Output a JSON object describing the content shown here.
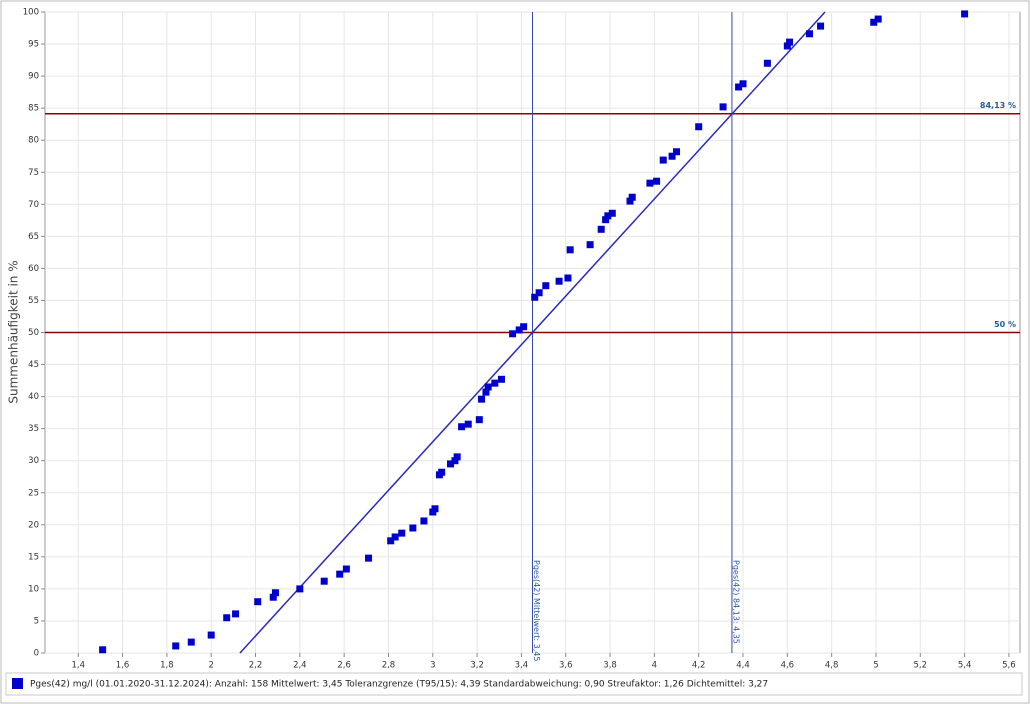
{
  "chart_data": {
    "type": "scatter",
    "y_label": "Summenhäufigkeit in %",
    "xlim": [
      1.25,
      5.65
    ],
    "ylim": [
      0,
      100
    ],
    "xticks": [
      {
        "value": 1.4,
        "label": "1,4"
      },
      {
        "value": 1.6,
        "label": "1,6"
      },
      {
        "value": 1.8,
        "label": "1,8"
      },
      2,
      {
        "value": 2.2,
        "label": "2,2"
      },
      {
        "value": 2.4,
        "label": "2,4"
      },
      {
        "value": 2.6,
        "label": "2,6"
      },
      {
        "value": 2.8,
        "label": "2,8"
      },
      3,
      {
        "value": 3.2,
        "label": "3,2"
      },
      {
        "value": 3.4,
        "label": "3,4"
      },
      {
        "value": 3.6,
        "label": "3,6"
      },
      {
        "value": 3.8,
        "label": "3,8"
      },
      4,
      {
        "value": 4.2,
        "label": "4,2"
      },
      {
        "value": 4.4,
        "label": "4,4"
      },
      {
        "value": 4.6,
        "label": "4,6"
      },
      {
        "value": 4.8,
        "label": "4,8"
      },
      5,
      {
        "value": 5.2,
        "label": "5,2"
      },
      {
        "value": 5.4,
        "label": "5,4"
      },
      {
        "value": 5.6,
        "label": "5,6"
      }
    ],
    "yticks": [
      0,
      5,
      10,
      15,
      20,
      25,
      30,
      35,
      40,
      45,
      50,
      55,
      60,
      65,
      70,
      75,
      80,
      85,
      90,
      95,
      100
    ],
    "grid": true,
    "series": [
      {
        "name": "Pges(42) mg/l (01.01.2020-31.12.2024): Anzahl: 158 Mittelwert: 3,45 Toleranzgrenze (T95/15): 4,39 Standardabweichung: 0,90 Streufaktor: 1,26 Dichtemittel: 3,27",
        "color": "#0000cc",
        "x": [
          1.51,
          1.84,
          1.91,
          2.0,
          2.07,
          2.11,
          2.21,
          2.28,
          2.29,
          2.4,
          2.51,
          2.58,
          2.61,
          2.71,
          2.81,
          2.83,
          2.86,
          2.91,
          2.96,
          3.0,
          3.01,
          3.03,
          3.04,
          3.08,
          3.1,
          3.11,
          3.13,
          3.16,
          3.21,
          3.22,
          3.24,
          3.25,
          3.28,
          3.31,
          3.36,
          3.39,
          3.41,
          3.46,
          3.48,
          3.51,
          3.57,
          3.61,
          3.62,
          3.71,
          3.76,
          3.78,
          3.79,
          3.81,
          3.89,
          3.9,
          3.98,
          4.01,
          4.04,
          4.08,
          4.1,
          4.2,
          4.31,
          4.38,
          4.4,
          4.51,
          4.6,
          4.61,
          4.7,
          4.75,
          4.99,
          5.01,
          5.4
        ],
        "values": [
          0.5,
          1.1,
          1.7,
          2.8,
          5.5,
          6.1,
          8.0,
          8.7,
          9.4,
          10.0,
          11.2,
          12.3,
          13.1,
          14.8,
          17.5,
          18.1,
          18.7,
          19.5,
          20.6,
          22.0,
          22.5,
          27.8,
          28.2,
          29.5,
          30.0,
          30.6,
          35.3,
          35.7,
          36.4,
          39.6,
          40.7,
          41.5,
          42.1,
          42.7,
          49.8,
          50.4,
          50.9,
          55.5,
          56.2,
          57.3,
          58.0,
          58.5,
          62.9,
          63.7,
          66.1,
          67.6,
          68.2,
          68.6,
          70.5,
          71.1,
          73.3,
          73.6,
          76.9,
          77.5,
          78.2,
          82.1,
          85.2,
          88.3,
          88.8,
          92.0,
          94.7,
          95.3,
          96.6,
          97.8,
          98.4,
          98.9,
          99.7
        ]
      }
    ],
    "fit_line": {
      "color": "#2a2ab8",
      "x": [
        2.13,
        4.77
      ],
      "values": [
        0,
        100
      ]
    },
    "horizontal_lines": [
      {
        "value": 84.13,
        "label": "84,13 %",
        "color": "#8b0000"
      },
      {
        "value": 50,
        "label": "50 %",
        "color": "#8b0000"
      }
    ],
    "vertical_lines": [
      {
        "value": 3.45,
        "label": "Pges(42) Mittelwert: 3,45",
        "color": "#3a4aa8"
      },
      {
        "value": 4.35,
        "label": "Pges(42) 84,13: 4,35",
        "color": "#3a4aa8"
      }
    ]
  }
}
